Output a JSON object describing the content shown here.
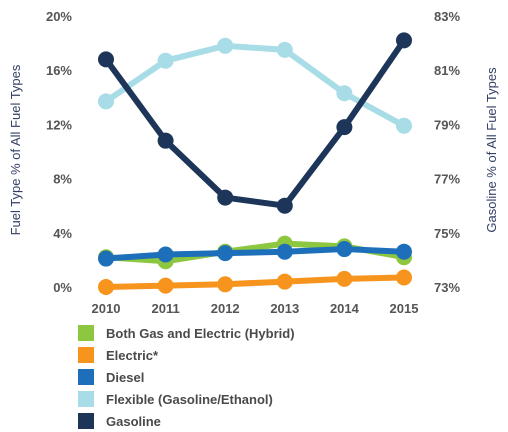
{
  "chart_data": {
    "type": "line",
    "title": "",
    "x": [
      "2010",
      "2011",
      "2012",
      "2013",
      "2014",
      "2015"
    ],
    "y_left": {
      "label": "Fuel Type % of All Fuel Types",
      "ticks": [
        "20%",
        "16%",
        "12%",
        "8%",
        "4%",
        "0%"
      ],
      "ylim": [
        0,
        20
      ]
    },
    "y_right": {
      "label": "Gasoline % of All Fuel Types",
      "ticks": [
        "83%",
        "81%",
        "79%",
        "77%",
        "75%",
        "73%"
      ],
      "ylim": [
        73,
        83
      ]
    },
    "series": [
      {
        "name": "Both Gas and Electric (Hybrid)",
        "axis": "left",
        "color": "#8dc63f",
        "values": [
          2.2,
          1.9,
          2.6,
          3.2,
          3.0,
          2.2
        ]
      },
      {
        "name": "Electric*",
        "axis": "left",
        "color": "#f7941d",
        "values": [
          0.0,
          0.1,
          0.2,
          0.4,
          0.6,
          0.7
        ]
      },
      {
        "name": "Diesel",
        "axis": "left",
        "color": "#1e6fba",
        "values": [
          2.1,
          2.4,
          2.5,
          2.6,
          2.8,
          2.6
        ]
      },
      {
        "name": "Flexible (Gasoline/Ethanol)",
        "axis": "left",
        "color": "#a8dce6",
        "values": [
          13.7,
          16.7,
          17.8,
          17.5,
          14.3,
          11.9
        ]
      },
      {
        "name": "Gasoline",
        "axis": "right",
        "color": "#1c3558",
        "values": [
          81.4,
          78.4,
          76.3,
          76.0,
          78.9,
          82.1
        ]
      }
    ],
    "grid": false,
    "legend_position": "bottom"
  }
}
